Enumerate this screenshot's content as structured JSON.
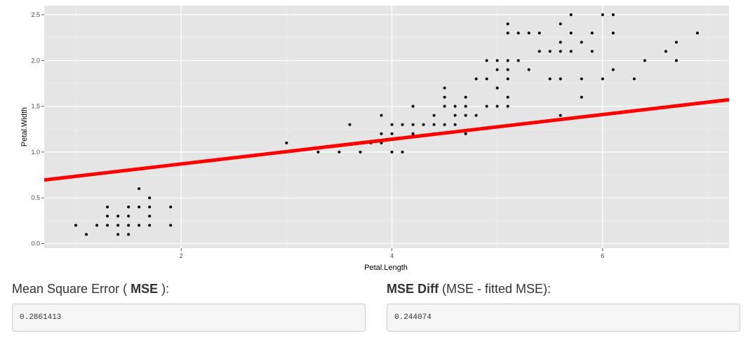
{
  "chart_data": {
    "type": "scatter",
    "xlabel": "Petal.Length",
    "ylabel": "Petal.Width",
    "xlim": [
      0.7,
      7.2
    ],
    "ylim": [
      -0.05,
      2.6
    ],
    "x_ticks": [
      2,
      4,
      6
    ],
    "y_ticks": [
      0.0,
      0.5,
      1.0,
      1.5,
      2.0,
      2.5
    ],
    "y_tick_labels": [
      "0.0",
      "0.5",
      "1.0",
      "1.5",
      "2.0",
      "2.5"
    ],
    "grid": true,
    "background_color": "#e5e5e5",
    "point_color": "#000000",
    "fit_line": {
      "intercept": 0.6,
      "slope": 0.135,
      "color": "#ff0000"
    },
    "points": [
      [
        1.0,
        0.2
      ],
      [
        1.1,
        0.1
      ],
      [
        1.2,
        0.2
      ],
      [
        1.3,
        0.2
      ],
      [
        1.3,
        0.3
      ],
      [
        1.3,
        0.4
      ],
      [
        1.4,
        0.1
      ],
      [
        1.4,
        0.2
      ],
      [
        1.4,
        0.3
      ],
      [
        1.5,
        0.1
      ],
      [
        1.5,
        0.2
      ],
      [
        1.5,
        0.3
      ],
      [
        1.5,
        0.4
      ],
      [
        1.6,
        0.2
      ],
      [
        1.6,
        0.4
      ],
      [
        1.6,
        0.6
      ],
      [
        1.7,
        0.2
      ],
      [
        1.7,
        0.3
      ],
      [
        1.7,
        0.4
      ],
      [
        1.7,
        0.5
      ],
      [
        1.9,
        0.2
      ],
      [
        1.9,
        0.4
      ],
      [
        3.0,
        1.1
      ],
      [
        3.3,
        1.0
      ],
      [
        3.5,
        1.0
      ],
      [
        3.6,
        1.3
      ],
      [
        3.7,
        1.0
      ],
      [
        3.8,
        1.1
      ],
      [
        3.9,
        1.1
      ],
      [
        3.9,
        1.2
      ],
      [
        3.9,
        1.4
      ],
      [
        4.0,
        1.0
      ],
      [
        4.0,
        1.2
      ],
      [
        4.0,
        1.3
      ],
      [
        4.1,
        1.0
      ],
      [
        4.1,
        1.3
      ],
      [
        4.2,
        1.2
      ],
      [
        4.2,
        1.3
      ],
      [
        4.2,
        1.5
      ],
      [
        4.3,
        1.3
      ],
      [
        4.4,
        1.2
      ],
      [
        4.4,
        1.3
      ],
      [
        4.4,
        1.4
      ],
      [
        4.5,
        1.3
      ],
      [
        4.5,
        1.5
      ],
      [
        4.5,
        1.6
      ],
      [
        4.5,
        1.7
      ],
      [
        4.6,
        1.3
      ],
      [
        4.6,
        1.4
      ],
      [
        4.6,
        1.5
      ],
      [
        4.7,
        1.2
      ],
      [
        4.7,
        1.4
      ],
      [
        4.7,
        1.5
      ],
      [
        4.7,
        1.6
      ],
      [
        4.8,
        1.4
      ],
      [
        4.8,
        1.8
      ],
      [
        4.9,
        1.5
      ],
      [
        4.9,
        1.8
      ],
      [
        4.9,
        2.0
      ],
      [
        5.0,
        1.5
      ],
      [
        5.0,
        1.7
      ],
      [
        5.0,
        1.9
      ],
      [
        5.0,
        2.0
      ],
      [
        5.1,
        1.5
      ],
      [
        5.1,
        1.6
      ],
      [
        5.1,
        1.8
      ],
      [
        5.1,
        1.9
      ],
      [
        5.1,
        2.0
      ],
      [
        5.1,
        2.3
      ],
      [
        5.1,
        2.4
      ],
      [
        5.2,
        2.0
      ],
      [
        5.2,
        2.3
      ],
      [
        5.3,
        1.9
      ],
      [
        5.3,
        2.3
      ],
      [
        5.4,
        2.1
      ],
      [
        5.4,
        2.3
      ],
      [
        5.5,
        1.8
      ],
      [
        5.5,
        2.1
      ],
      [
        5.6,
        1.4
      ],
      [
        5.6,
        1.8
      ],
      [
        5.6,
        2.1
      ],
      [
        5.6,
        2.2
      ],
      [
        5.6,
        2.4
      ],
      [
        5.7,
        2.1
      ],
      [
        5.7,
        2.3
      ],
      [
        5.7,
        2.5
      ],
      [
        5.8,
        1.6
      ],
      [
        5.8,
        1.8
      ],
      [
        5.8,
        2.2
      ],
      [
        5.9,
        2.1
      ],
      [
        5.9,
        2.3
      ],
      [
        6.0,
        1.8
      ],
      [
        6.0,
        2.5
      ],
      [
        6.1,
        1.9
      ],
      [
        6.1,
        2.3
      ],
      [
        6.1,
        2.5
      ],
      [
        6.3,
        1.8
      ],
      [
        6.4,
        2.0
      ],
      [
        6.6,
        2.1
      ],
      [
        6.7,
        2.0
      ],
      [
        6.7,
        2.2
      ],
      [
        6.9,
        2.3
      ]
    ]
  },
  "stats": {
    "mse_label_prefix": "Mean Square Error ( ",
    "mse_label_bold": "MSE",
    "mse_label_suffix": " ):",
    "mse_value": "0.2861413",
    "diff_label_bold": "MSE Diff",
    "diff_label_rest": " (MSE - fitted MSE):",
    "diff_value": "0.244074"
  }
}
